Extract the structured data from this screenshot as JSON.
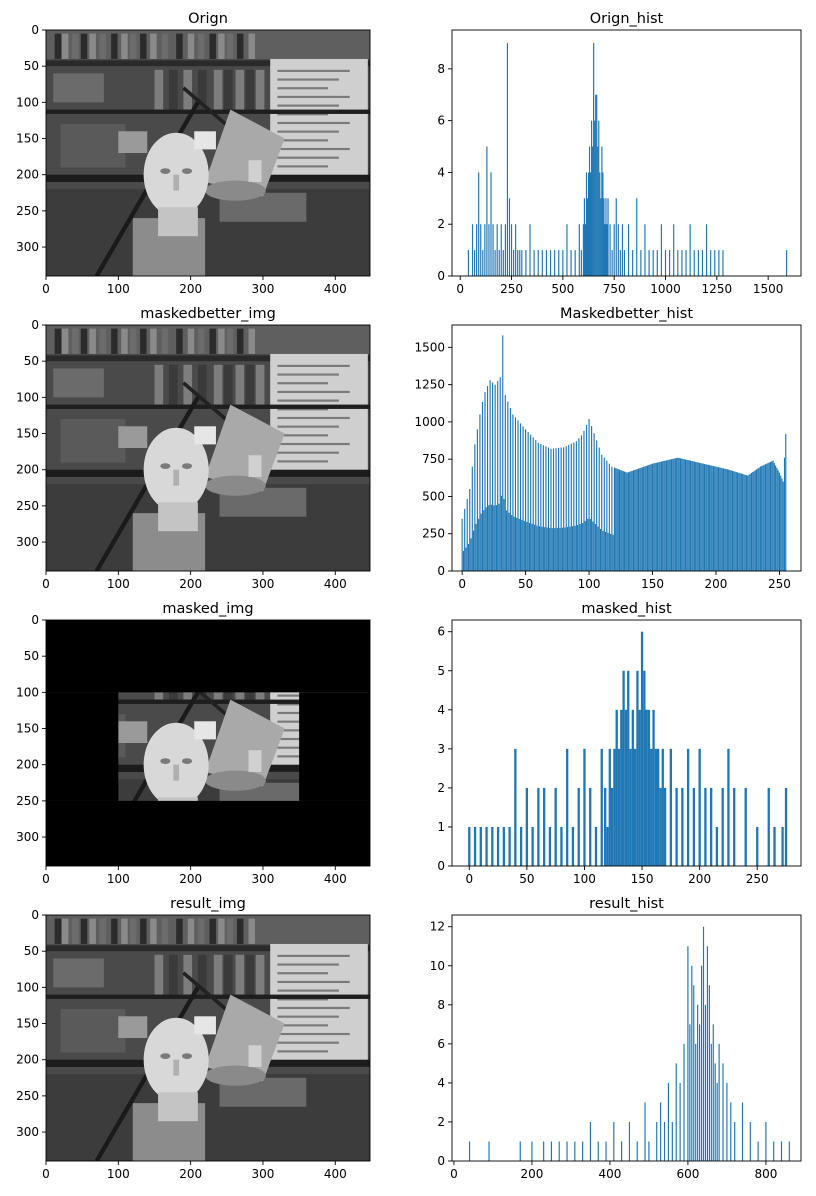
{
  "colors": {
    "bar": "#1f77b4",
    "mask": "#000000",
    "frame": "#000000"
  },
  "chart_data": [
    {
      "id": "orign-img",
      "type": "image",
      "title": "Orign",
      "xlim": [
        0,
        448
      ],
      "ylim": [
        340,
        0
      ],
      "xticks": [
        0,
        100,
        200,
        300,
        400
      ],
      "yticks": [
        0,
        50,
        100,
        150,
        200,
        250,
        300
      ],
      "content": "grayscale-photo"
    },
    {
      "id": "orign-hist",
      "type": "bar",
      "title": "Orign_hist",
      "xlim": [
        -40,
        1660
      ],
      "ylim": [
        0,
        9.5
      ],
      "xticks": [
        0,
        250,
        500,
        750,
        1000,
        1250,
        1500
      ],
      "yticks": [
        0,
        2,
        4,
        6,
        8
      ],
      "x": [
        40,
        60,
        70,
        80,
        90,
        100,
        110,
        120,
        130,
        140,
        150,
        160,
        170,
        180,
        190,
        200,
        210,
        220,
        230,
        240,
        250,
        260,
        270,
        280,
        290,
        300,
        320,
        340,
        360,
        380,
        400,
        420,
        440,
        460,
        480,
        500,
        520,
        540,
        560,
        580,
        590,
        600,
        605,
        610,
        615,
        620,
        625,
        630,
        635,
        640,
        645,
        650,
        655,
        660,
        665,
        670,
        675,
        680,
        685,
        690,
        695,
        700,
        705,
        710,
        715,
        720,
        730,
        740,
        750,
        760,
        770,
        780,
        790,
        800,
        820,
        840,
        860,
        880,
        900,
        920,
        940,
        960,
        980,
        1000,
        1020,
        1040,
        1060,
        1080,
        1100,
        1120,
        1140,
        1160,
        1180,
        1200,
        1220,
        1240,
        1260,
        1280,
        1590
      ],
      "values": [
        1,
        2,
        1,
        2,
        4,
        2,
        1,
        2,
        5,
        2,
        4,
        2,
        1,
        2,
        1,
        2,
        1,
        2,
        9,
        3,
        2,
        1,
        2,
        1,
        1,
        1,
        1,
        2,
        1,
        1,
        1,
        1,
        1,
        1,
        1,
        1,
        2,
        1,
        1,
        2,
        1,
        2,
        3,
        2,
        4,
        3,
        4,
        5,
        4,
        6,
        5,
        9,
        6,
        7,
        7,
        5,
        6,
        4,
        3,
        5,
        4,
        3,
        2,
        3,
        2,
        3,
        2,
        1,
        2,
        3,
        2,
        1,
        2,
        1,
        2,
        1,
        3,
        1,
        2,
        1,
        1,
        1,
        2,
        1,
        1,
        2,
        1,
        1,
        1,
        2,
        1,
        1,
        1,
        2,
        1,
        1,
        1,
        1,
        1
      ]
    },
    {
      "id": "maskedbetter-img",
      "type": "image",
      "title": "maskedbetter_img",
      "xlim": [
        0,
        448
      ],
      "ylim": [
        340,
        0
      ],
      "xticks": [
        0,
        100,
        200,
        300,
        400
      ],
      "yticks": [
        0,
        50,
        100,
        150,
        200,
        250,
        300
      ],
      "content": "grayscale-photo"
    },
    {
      "id": "maskedbetter-hist",
      "type": "bar",
      "title": "Maskedbetter_hist",
      "xlim": [
        -8,
        267
      ],
      "ylim": [
        0,
        1650
      ],
      "xticks": [
        0,
        50,
        100,
        150,
        200,
        250
      ],
      "yticks": [
        0,
        250,
        500,
        750,
        1000,
        1250,
        1500
      ],
      "series_profile": {
        "x": [
          0,
          3,
          6,
          10,
          15,
          18,
          22,
          26,
          30,
          32,
          34,
          40,
          50,
          60,
          70,
          80,
          90,
          95,
          100,
          105,
          110,
          118,
          130,
          150,
          170,
          190,
          210,
          225,
          235,
          245,
          250,
          253,
          255
        ],
        "values": [
          350,
          450,
          550,
          850,
          1100,
          1200,
          1280,
          1250,
          1300,
          1580,
          1180,
          1050,
          950,
          860,
          820,
          830,
          870,
          920,
          1020,
          900,
          780,
          700,
          660,
          720,
          760,
          720,
          680,
          640,
          700,
          740,
          660,
          600,
          920
        ]
      }
    },
    {
      "id": "masked-img",
      "type": "image",
      "title": "masked_img",
      "xlim": [
        0,
        448
      ],
      "ylim": [
        340,
        0
      ],
      "xticks": [
        0,
        100,
        200,
        300,
        400
      ],
      "yticks": [
        0,
        50,
        100,
        150,
        200,
        250,
        300
      ],
      "content": "masked-photo",
      "window": {
        "x": [
          100,
          350
        ],
        "y": [
          100,
          250
        ]
      }
    },
    {
      "id": "masked-hist",
      "type": "bar",
      "title": "masked_hist",
      "xlim": [
        -15,
        288
      ],
      "ylim": [
        0,
        6.3
      ],
      "xticks": [
        0,
        50,
        100,
        150,
        200,
        250
      ],
      "yticks": [
        0,
        1,
        2,
        3,
        4,
        5,
        6
      ],
      "x": [
        0,
        5,
        10,
        15,
        20,
        25,
        30,
        35,
        40,
        45,
        50,
        55,
        60,
        65,
        70,
        75,
        80,
        85,
        90,
        95,
        100,
        105,
        110,
        115,
        118,
        120,
        122,
        124,
        126,
        128,
        130,
        132,
        134,
        136,
        138,
        140,
        142,
        144,
        146,
        148,
        150,
        152,
        154,
        156,
        158,
        160,
        162,
        164,
        166,
        168,
        170,
        175,
        180,
        185,
        190,
        195,
        200,
        205,
        210,
        215,
        220,
        225,
        230,
        240,
        250,
        260,
        265,
        272,
        275
      ],
      "values": [
        1,
        1,
        1,
        1,
        1,
        1,
        1,
        1,
        3,
        1,
        2,
        1,
        2,
        2,
        1,
        2,
        1,
        3,
        1,
        2,
        3,
        2,
        1,
        3,
        2,
        1,
        3,
        2,
        3,
        4,
        3,
        4,
        5,
        4,
        5,
        3,
        4,
        3,
        5,
        4,
        6,
        5,
        4,
        4,
        3,
        4,
        3,
        3,
        2,
        3,
        2,
        3,
        2,
        2,
        3,
        2,
        3,
        2,
        2,
        1,
        2,
        3,
        2,
        2,
        1,
        2,
        1,
        1,
        2
      ]
    },
    {
      "id": "result-img",
      "type": "image",
      "title": "result_img",
      "xlim": [
        0,
        448
      ],
      "ylim": [
        340,
        0
      ],
      "xticks": [
        0,
        100,
        200,
        300,
        400
      ],
      "yticks": [
        0,
        50,
        100,
        150,
        200,
        250,
        300
      ],
      "content": "grayscale-photo"
    },
    {
      "id": "result-hist",
      "type": "bar",
      "title": "result_hist",
      "xlim": [
        -5,
        890
      ],
      "ylim": [
        0,
        12.6
      ],
      "xticks": [
        0,
        200,
        400,
        600,
        800
      ],
      "yticks": [
        0,
        2,
        4,
        6,
        8,
        10,
        12
      ],
      "x": [
        40,
        90,
        170,
        200,
        230,
        250,
        270,
        290,
        310,
        330,
        350,
        370,
        390,
        410,
        430,
        450,
        470,
        490,
        500,
        520,
        530,
        540,
        550,
        560,
        570,
        580,
        590,
        600,
        605,
        610,
        615,
        620,
        625,
        630,
        635,
        640,
        645,
        650,
        655,
        660,
        665,
        670,
        675,
        680,
        690,
        700,
        710,
        720,
        740,
        760,
        780,
        800,
        820,
        840,
        860
      ],
      "values": [
        1,
        1,
        1,
        1,
        1,
        1,
        1,
        1,
        1,
        1,
        2,
        1,
        1,
        2,
        1,
        2,
        1,
        3,
        1,
        2,
        3,
        2,
        4,
        2,
        5,
        4,
        6,
        11,
        7,
        10,
        9,
        6,
        8,
        7,
        10,
        12,
        8,
        11,
        9,
        6,
        7,
        5,
        4,
        6,
        5,
        4,
        3,
        2,
        3,
        2,
        1,
        2,
        1,
        1,
        1
      ]
    }
  ]
}
